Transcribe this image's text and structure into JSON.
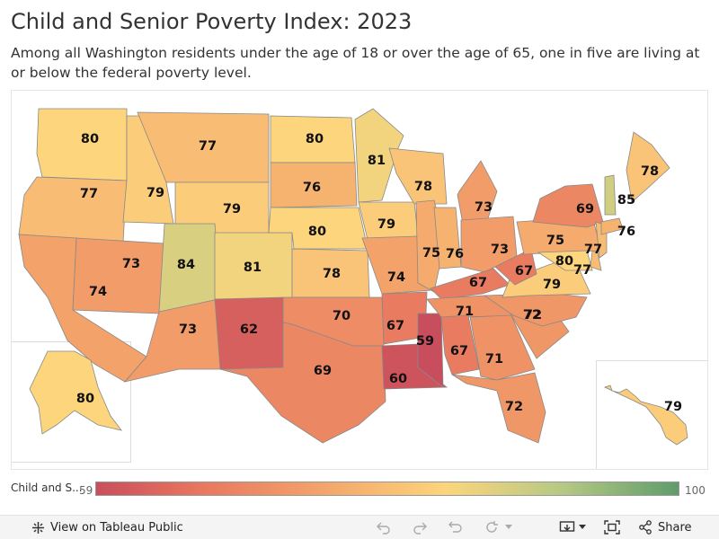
{
  "title": "Child and Senior Poverty Index: 2023",
  "subtitle": "Among all Washington residents under the age of 18 or over the age of 65, one in five are living at or below the federal poverty level.",
  "legend": {
    "title": "Child and S...",
    "min": "59",
    "max": "100"
  },
  "colors": {
    "low": "#c94e5d",
    "mid_low": "#f3a26a",
    "mid": "#fcd57d",
    "high": "#5f9c6c",
    "border": "#888888"
  },
  "map_data": {
    "states": [
      {
        "state": "WA",
        "value": 80
      },
      {
        "state": "OR",
        "value": 77
      },
      {
        "state": "CA",
        "value": 74
      },
      {
        "state": "ID",
        "value": 79
      },
      {
        "state": "NV",
        "value": 73
      },
      {
        "state": "MT",
        "value": 77
      },
      {
        "state": "WY",
        "value": 79
      },
      {
        "state": "UT",
        "value": 84
      },
      {
        "state": "AZ",
        "value": 73
      },
      {
        "state": "CO",
        "value": 81
      },
      {
        "state": "NM",
        "value": 62
      },
      {
        "state": "ND",
        "value": 80
      },
      {
        "state": "SD",
        "value": 76
      },
      {
        "state": "NE",
        "value": 80
      },
      {
        "state": "KS",
        "value": 78
      },
      {
        "state": "OK",
        "value": 70
      },
      {
        "state": "TX",
        "value": 69
      },
      {
        "state": "MN",
        "value": 81
      },
      {
        "state": "IA",
        "value": 79
      },
      {
        "state": "MO",
        "value": 74
      },
      {
        "state": "AR",
        "value": 67
      },
      {
        "state": "LA",
        "value": 60
      },
      {
        "state": "WI",
        "value": 78
      },
      {
        "state": "IL",
        "value": 75
      },
      {
        "state": "MS",
        "value": 59
      },
      {
        "state": "MI",
        "value": 73
      },
      {
        "state": "IN",
        "value": 76
      },
      {
        "state": "OH",
        "value": 73
      },
      {
        "state": "KY",
        "value": 67
      },
      {
        "state": "TN",
        "value": 71
      },
      {
        "state": "AL",
        "value": 67
      },
      {
        "state": "GA",
        "value": 71
      },
      {
        "state": "FL",
        "value": 72
      },
      {
        "state": "SC",
        "value": 72
      },
      {
        "state": "NC",
        "value": 72
      },
      {
        "state": "VA",
        "value": 79
      },
      {
        "state": "WV",
        "value": 67
      },
      {
        "state": "PA",
        "value": 75
      },
      {
        "state": "NY",
        "value": 69
      },
      {
        "state": "NJ",
        "value": 77
      },
      {
        "state": "DE",
        "value": 77
      },
      {
        "state": "MD",
        "value": 80
      },
      {
        "state": "CT",
        "value": 76
      },
      {
        "state": "VT",
        "value": 85
      },
      {
        "state": "ME",
        "value": 78
      },
      {
        "state": "AK",
        "value": 80
      },
      {
        "state": "HI",
        "value": 79
      }
    ]
  },
  "toolbar": {
    "view_label": "View on Tableau Public",
    "share_label": "Share",
    "icons": [
      "tableau-logo-icon",
      "undo-icon",
      "redo-icon",
      "revert-icon",
      "refresh-icon",
      "pause-icon",
      "download-icon",
      "fullscreen-icon",
      "share-icon"
    ]
  }
}
